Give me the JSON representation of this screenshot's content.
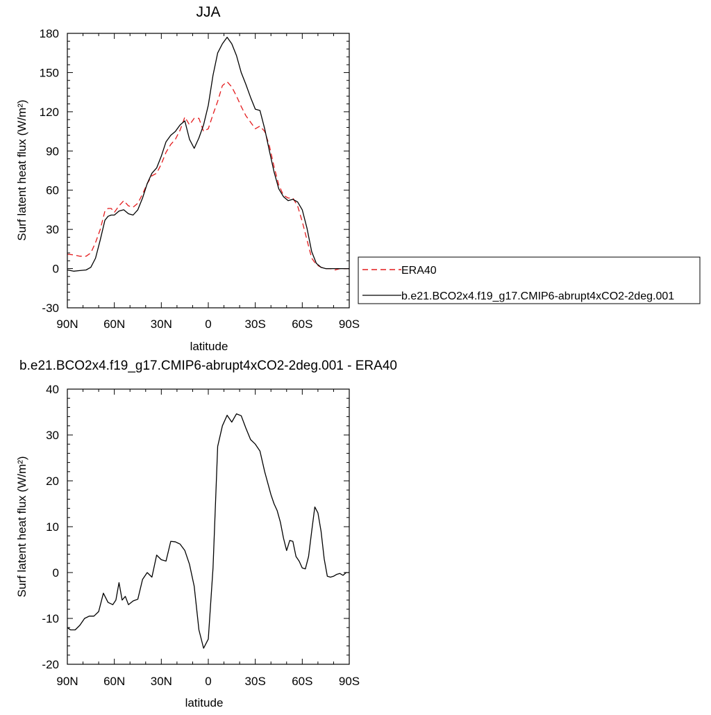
{
  "chart_data": [
    {
      "type": "line",
      "title": "JJA",
      "xlabel": "latitude",
      "ylabel": "Surf latent heat flux (W/m²)",
      "xlim": [
        -90,
        90
      ],
      "ylim": [
        -30,
        180
      ],
      "x_reversed": true,
      "x_ticks": [
        {
          "value": -90,
          "label": "90N"
        },
        {
          "value": -60,
          "label": "60N"
        },
        {
          "value": -30,
          "label": "30N"
        },
        {
          "value": 0,
          "label": "0"
        },
        {
          "value": 30,
          "label": "30S"
        },
        {
          "value": 60,
          "label": "60S"
        },
        {
          "value": 90,
          "label": "90S"
        }
      ],
      "y_ticks": [
        {
          "value": -30,
          "label": "-30"
        },
        {
          "value": 0,
          "label": "0"
        },
        {
          "value": 30,
          "label": "30"
        },
        {
          "value": 60,
          "label": "60"
        },
        {
          "value": 90,
          "label": "90"
        },
        {
          "value": 120,
          "label": "120"
        },
        {
          "value": 150,
          "label": "150"
        },
        {
          "value": 180,
          "label": "180"
        }
      ],
      "grid": false,
      "legend": {
        "placement": "right",
        "entries": [
          {
            "label": "ERA40",
            "style": "dashed",
            "color": "#e41a1c"
          },
          {
            "label": "b.e21.BCO2x4.f19_g17.CMIP6-abrupt4xCO2-2deg.001",
            "style": "solid",
            "color": "#000000"
          }
        ]
      },
      "series": [
        {
          "name": "ERA40",
          "color": "#e41a1c",
          "style": "dashed",
          "x": [
            -90,
            -86,
            -82,
            -78,
            -75,
            -72,
            -69,
            -66,
            -64,
            -62,
            -60,
            -57,
            -54,
            -51,
            -48,
            -45,
            -42,
            -39,
            -36,
            -33,
            -30,
            -27,
            -24,
            -21,
            -18,
            -15,
            -12,
            -9,
            -6,
            -3,
            0,
            3,
            6,
            9,
            12,
            15,
            18,
            21,
            24,
            27,
            30,
            33,
            36,
            39,
            42,
            45,
            48,
            51,
            54,
            57,
            60,
            63,
            66,
            69,
            72,
            75,
            78,
            81,
            84,
            87,
            90
          ],
          "y": [
            11,
            10.5,
            9.5,
            9.5,
            12,
            20,
            30,
            44,
            46,
            46,
            43,
            48,
            52,
            48,
            47,
            50,
            57,
            65,
            71,
            73,
            80,
            89,
            95,
            99,
            106,
            116,
            110,
            115,
            115,
            105,
            107,
            118,
            128,
            140,
            143,
            139,
            132,
            124,
            117,
            112,
            107,
            109,
            105,
            94,
            78,
            64,
            56,
            54,
            54,
            48,
            36,
            22,
            8,
            3,
            1,
            0,
            0,
            -1,
            0,
            0,
            0
          ]
        },
        {
          "name": "b.e21.BCO2x4.f19_g17.CMIP6-abrupt4xCO2-2deg.001",
          "color": "#000000",
          "style": "solid",
          "x": [
            -90,
            -86,
            -82,
            -78,
            -75,
            -72,
            -69,
            -66,
            -64,
            -62,
            -60,
            -57,
            -54,
            -51,
            -48,
            -45,
            -42,
            -39,
            -36,
            -33,
            -30,
            -27,
            -24,
            -21,
            -18,
            -15,
            -12,
            -9,
            -6,
            -3,
            0,
            3,
            6,
            9,
            12,
            15,
            18,
            21,
            24,
            27,
            30,
            33,
            36,
            39,
            42,
            45,
            48,
            51,
            54,
            57,
            60,
            63,
            66,
            69,
            72,
            75,
            78,
            81,
            84,
            87,
            90
          ],
          "y": [
            -1,
            -2,
            -1.5,
            -1,
            1,
            8,
            22,
            37,
            40,
            41,
            41,
            44,
            45,
            42,
            41,
            45,
            54,
            65,
            73,
            77,
            86,
            97,
            102,
            105,
            110,
            113,
            99,
            92,
            100,
            110,
            125,
            148,
            165,
            172,
            177,
            172,
            163,
            150,
            141,
            131,
            122,
            121,
            107,
            90,
            74,
            61,
            55,
            52,
            53,
            51,
            45,
            31,
            13,
            4,
            1,
            0,
            0,
            0,
            0,
            0,
            0
          ]
        }
      ]
    },
    {
      "type": "line",
      "title": "b.e21.BCO2x4.f19_g17.CMIP6-abrupt4xCO2-2deg.001 - ERA40",
      "xlabel": "latitude",
      "ylabel": "Surf latent heat flux (W/m²)",
      "xlim": [
        -90,
        90
      ],
      "ylim": [
        -20,
        40
      ],
      "x_reversed": true,
      "x_ticks": [
        {
          "value": -90,
          "label": "90N"
        },
        {
          "value": -60,
          "label": "60N"
        },
        {
          "value": -30,
          "label": "30N"
        },
        {
          "value": 0,
          "label": "0"
        },
        {
          "value": 30,
          "label": "30S"
        },
        {
          "value": 60,
          "label": "60S"
        },
        {
          "value": 90,
          "label": "90S"
        }
      ],
      "y_ticks": [
        {
          "value": -20,
          "label": "-20"
        },
        {
          "value": -10,
          "label": "-10"
        },
        {
          "value": 0,
          "label": "0"
        },
        {
          "value": 10,
          "label": "10"
        },
        {
          "value": 20,
          "label": "20"
        },
        {
          "value": 30,
          "label": "30"
        },
        {
          "value": 40,
          "label": "40"
        }
      ],
      "grid": false,
      "series": [
        {
          "color": "#000000",
          "style": "solid",
          "x": [
            -90,
            -88,
            -85,
            -82,
            -79,
            -76,
            -73,
            -70,
            -67,
            -64,
            -61,
            -59,
            -57,
            -55,
            -53,
            -51,
            -48,
            -45,
            -42,
            -39,
            -36,
            -33,
            -30,
            -27,
            -24,
            -21,
            -18,
            -15,
            -12,
            -9,
            -6,
            -3,
            0,
            3,
            6,
            9,
            12,
            15,
            18,
            21,
            24,
            27,
            30,
            33,
            36,
            38,
            40,
            42,
            44,
            46,
            48,
            50,
            52,
            54,
            56,
            58,
            60,
            62,
            64,
            66,
            68,
            70,
            72,
            74,
            76,
            78,
            80,
            82,
            84,
            86,
            88,
            90
          ],
          "y": [
            -12,
            -12.5,
            -12.5,
            -11.5,
            -10,
            -9.5,
            -9.5,
            -8.5,
            -4.5,
            -6.5,
            -7,
            -6,
            -2.2,
            -6,
            -5.2,
            -7,
            -6.2,
            -5.8,
            -1.5,
            0,
            -1,
            3.8,
            2.8,
            2.5,
            6.8,
            6.7,
            6.2,
            4.8,
            1.8,
            -3,
            -12.5,
            -16.5,
            -14.5,
            1,
            27.5,
            32,
            34.3,
            32.8,
            34.6,
            34.2,
            31.5,
            29,
            28,
            26.5,
            22,
            19.5,
            17,
            15,
            13.5,
            11,
            7.5,
            4.8,
            7,
            6.8,
            3.5,
            2.5,
            1,
            0.8,
            3.5,
            9,
            14.3,
            13,
            9,
            3,
            -0.8,
            -1,
            -0.8,
            -0.4,
            -0.2,
            -0.6,
            0,
            0
          ]
        }
      ]
    }
  ]
}
